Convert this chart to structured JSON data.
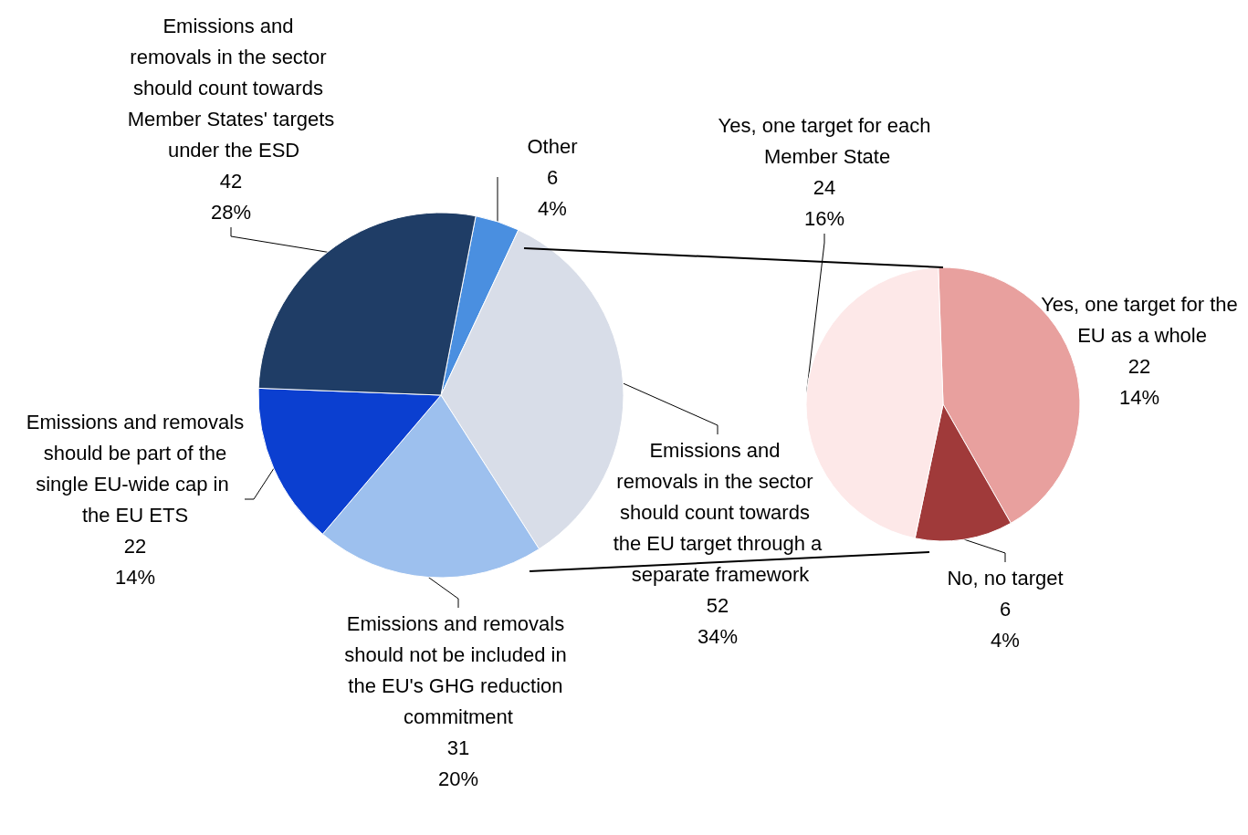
{
  "chart_data": [
    {
      "type": "pie",
      "categories": [
        "Other",
        "Emissions and removals in the sector should count towards the EU target through a separate framework",
        "Emissions and removals should not be included in the EU's GHG reduction commitment",
        "Emissions and removals should be part of the single EU-wide cap in the EU ETS",
        "Emissions and removals in the sector should count towards Member States' targets under the ESD"
      ],
      "values": [
        6,
        52,
        31,
        22,
        42
      ],
      "value_labels": [
        "6\n4%",
        "52\n34%",
        "31\n20%",
        "22\n14%",
        "42\n28%"
      ],
      "colors": [
        "#4a8fe0",
        "#d8dde8",
        "#9dc0ee",
        "#0b3fd0",
        "#1f3d66"
      ]
    },
    {
      "type": "pie",
      "categories": [
        "Yes, one target for the EU as a whole",
        "No, no target",
        "Yes, one target for each Member State"
      ],
      "values": [
        22,
        6,
        24
      ],
      "value_labels": [
        "22\n14%",
        "6\n4%",
        "24\n16%"
      ],
      "colors": [
        "#e8a09e",
        "#a03a3a",
        "#fde8e8"
      ]
    }
  ]
}
